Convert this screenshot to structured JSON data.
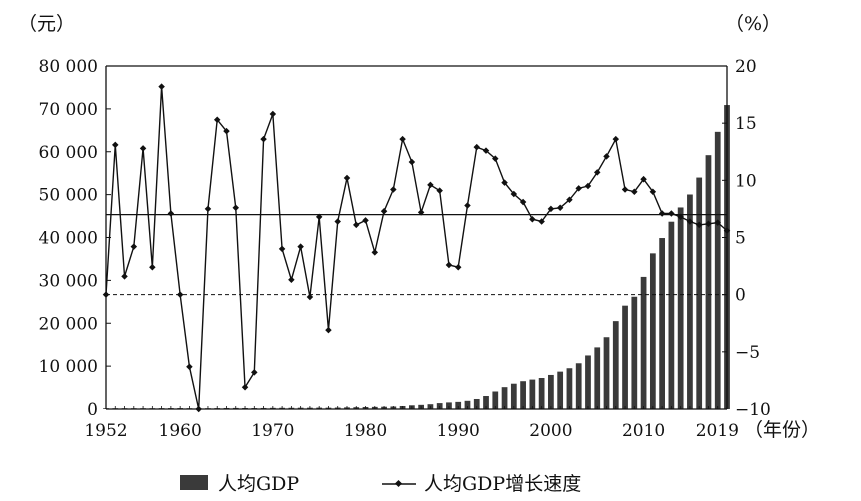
{
  "chart_data": {
    "type": "bar",
    "years": [
      1952,
      1953,
      1954,
      1955,
      1956,
      1957,
      1958,
      1959,
      1960,
      1961,
      1962,
      1963,
      1964,
      1965,
      1966,
      1967,
      1968,
      1969,
      1970,
      1971,
      1972,
      1973,
      1974,
      1975,
      1976,
      1977,
      1978,
      1979,
      1980,
      1981,
      1982,
      1983,
      1984,
      1985,
      1986,
      1987,
      1988,
      1989,
      1990,
      1991,
      1992,
      1993,
      1994,
      1995,
      1996,
      1997,
      1998,
      1999,
      2000,
      2001,
      2002,
      2003,
      2004,
      2005,
      2006,
      2007,
      2008,
      2009,
      2010,
      2011,
      2012,
      2013,
      2014,
      2015,
      2016,
      2017,
      2018,
      2019
    ],
    "series": [
      {
        "name": "人均GDP",
        "axis": "left",
        "render": "bar",
        "values": [
          119,
          144,
          146,
          150,
          165,
          168,
          200,
          216,
          218,
          185,
          173,
          181,
          208,
          240,
          254,
          235,
          222,
          243,
          275,
          288,
          292,
          309,
          310,
          327,
          316,
          341,
          385,
          423,
          468,
          497,
          533,
          588,
          702,
          866,
          973,
          1123,
          1378,
          1536,
          1663,
          1912,
          2334,
          3027,
          4081,
          5091,
          5898,
          6481,
          6860,
          7229,
          7942,
          8717,
          9506,
          10666,
          12487,
          14368,
          16738,
          20494,
          24100,
          26180,
          30808,
          36302,
          39874,
          43684,
          47005,
          50028,
          53980,
          59201,
          64644,
          70892
        ]
      },
      {
        "name": "人均GDP增长速度",
        "axis": "right",
        "render": "line",
        "values": [
          0,
          13.1,
          1.6,
          4.2,
          12.8,
          2.4,
          18.2,
          7.1,
          0,
          -6.3,
          -10,
          7.5,
          15.3,
          14.3,
          7.6,
          -8.1,
          -6.8,
          13.6,
          15.8,
          4,
          1.3,
          4.2,
          -0.2,
          6.8,
          -3.1,
          6.4,
          10.2,
          6.1,
          6.5,
          3.7,
          7.3,
          9.2,
          13.6,
          11.6,
          7.2,
          9.6,
          9.1,
          2.6,
          2.4,
          7.8,
          12.9,
          12.6,
          11.9,
          9.8,
          8.8,
          8.1,
          6.6,
          6.4,
          7.5,
          7.6,
          8.3,
          9.3,
          9.5,
          10.7,
          12.1,
          13.6,
          9.2,
          9,
          10.1,
          9,
          7.1,
          7.1,
          6.8,
          6.4,
          6.1,
          6.2,
          6.3,
          5.6
        ]
      }
    ],
    "x_tick_labels": [
      "1952",
      "1960",
      "1970",
      "1980",
      "1990",
      "2000",
      "2010",
      "2019"
    ],
    "x_ticks": [
      1952,
      1960,
      1970,
      1980,
      1990,
      2000,
      2010,
      2019
    ],
    "xlim": [
      1952,
      2019
    ],
    "xlabel": "（年份）",
    "left_axis": {
      "unit": "（元）",
      "ylim": [
        0,
        80000
      ],
      "ticks": [
        0,
        10000,
        20000,
        30000,
        40000,
        50000,
        60000,
        70000,
        80000
      ],
      "tick_labels": [
        "0",
        "10 000",
        "20 000",
        "30 000",
        "40 000",
        "50 000",
        "60 000",
        "70 000",
        "80 000"
      ]
    },
    "right_axis": {
      "unit": "（%）",
      "ylim": [
        -10,
        20
      ],
      "ticks": [
        -10,
        -5,
        0,
        5,
        10,
        15,
        20
      ],
      "tick_labels": [
        "−10",
        "−5",
        "0",
        "5",
        "10",
        "15",
        "20"
      ]
    },
    "reference_lines": [
      {
        "axis": "right",
        "value": 0,
        "style": "dashed"
      },
      {
        "axis": "right",
        "value": 7,
        "style": "solid"
      }
    ],
    "grid": false,
    "legend": {
      "position": "bottom",
      "items": [
        {
          "label": "人均GDP",
          "marker": "bar"
        },
        {
          "label": "人均GDP增长速度",
          "marker": "line-diamond"
        }
      ]
    },
    "colors": {
      "bar": "#3a3a3a",
      "line": "#111111",
      "axis": "#111111"
    }
  }
}
